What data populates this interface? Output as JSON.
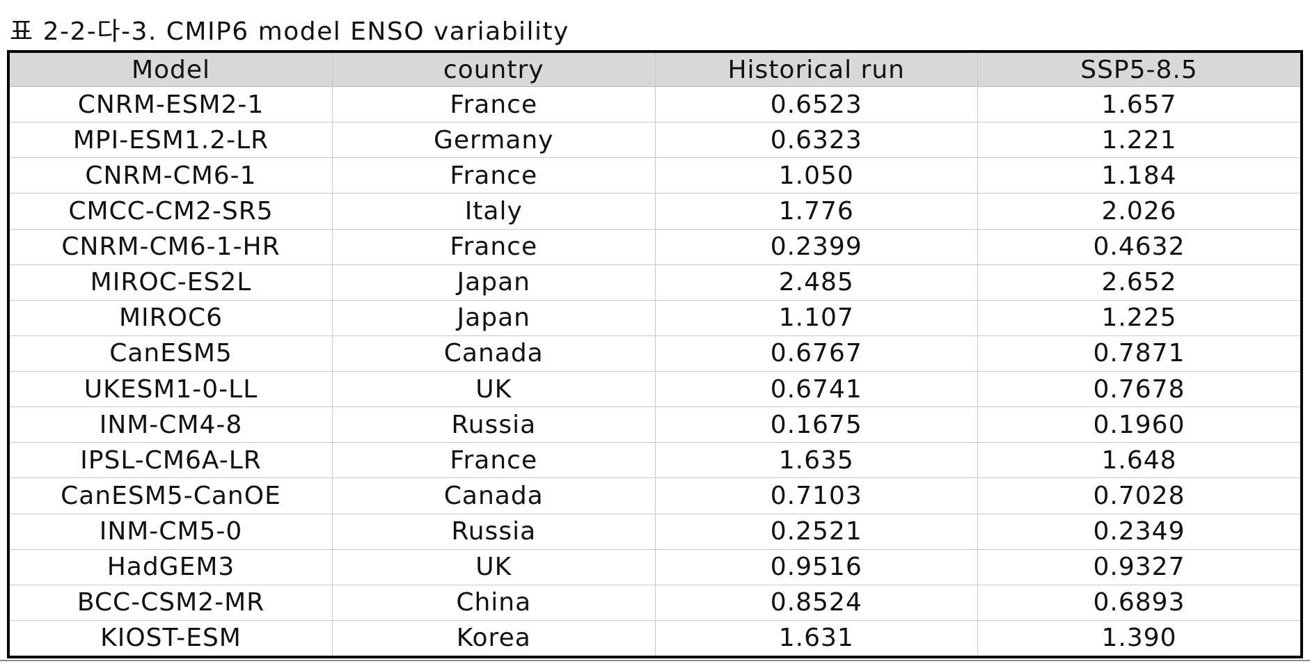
{
  "caption": "표 2-2-다-3. CMIP6 model ENSO variability",
  "table": {
    "headers": [
      "Model",
      "country",
      "Historical run",
      "SSP5-8.5"
    ],
    "rows": [
      [
        "CNRM-ESM2-1",
        "France",
        "0.6523",
        "1.657"
      ],
      [
        "MPI-ESM1.2-LR",
        "Germany",
        "0.6323",
        "1.221"
      ],
      [
        "CNRM-CM6-1",
        "France",
        "1.050",
        "1.184"
      ],
      [
        "CMCC-CM2-SR5",
        "Italy",
        "1.776",
        "2.026"
      ],
      [
        "CNRM-CM6-1-HR",
        "France",
        "0.2399",
        "0.4632"
      ],
      [
        "MIROC-ES2L",
        "Japan",
        "2.485",
        "2.652"
      ],
      [
        "MIROC6",
        "Japan",
        "1.107",
        "1.225"
      ],
      [
        "CanESM5",
        "Canada",
        "0.6767",
        "0.7871"
      ],
      [
        "UKESM1-0-LL",
        "UK",
        "0.6741",
        "0.7678"
      ],
      [
        "INM-CM4-8",
        "Russia",
        "0.1675",
        "0.1960"
      ],
      [
        "IPSL-CM6A-LR",
        "France",
        "1.635",
        "1.648"
      ],
      [
        "CanESM5-CanOE",
        "Canada",
        "0.7103",
        "0.7028"
      ],
      [
        "INM-CM5-0",
        "Russia",
        "0.2521",
        "0.2349"
      ],
      [
        "HadGEM3",
        "UK",
        "0.9516",
        "0.9327"
      ],
      [
        "BCC-CSM2-MR",
        "China",
        "0.8524",
        "0.6893"
      ],
      [
        "KIOST-ESM",
        "Korea",
        "1.631",
        "1.390"
      ]
    ]
  },
  "colors": {
    "header_background": "#d9d9d9",
    "outer_border": "#000000",
    "grid_line": "#c8c8c8"
  }
}
